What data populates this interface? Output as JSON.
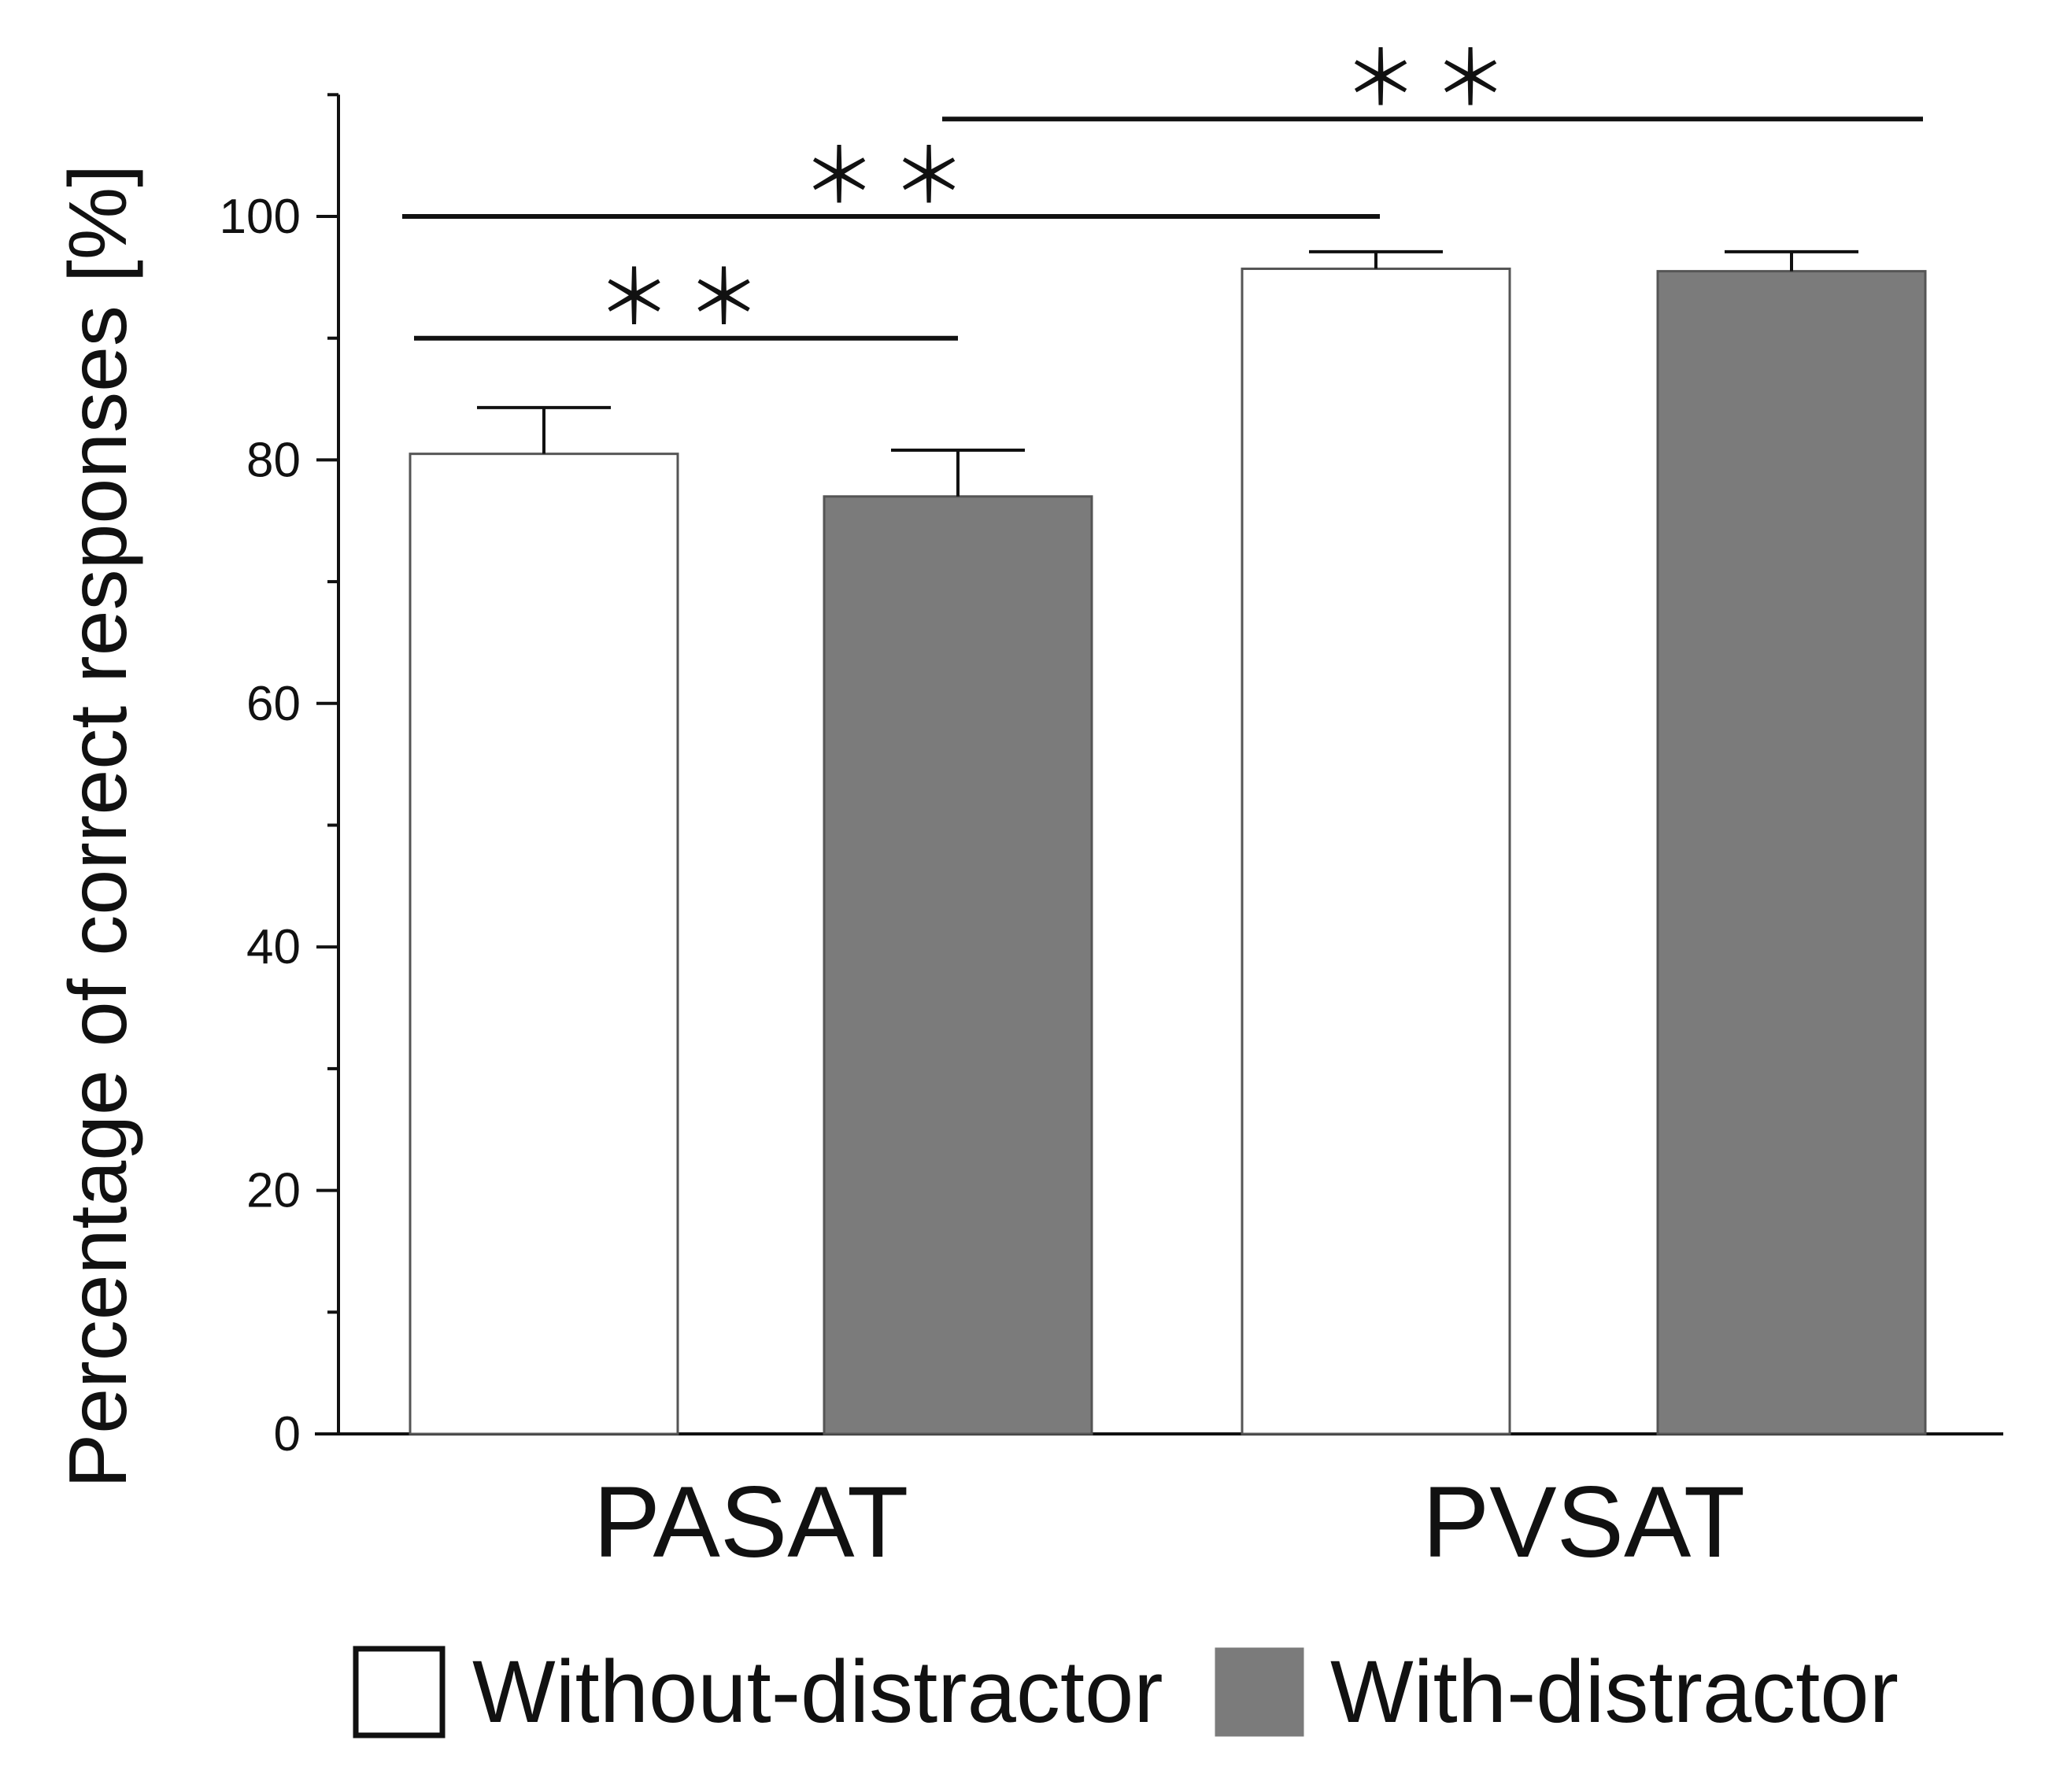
{
  "chart_data": {
    "type": "bar",
    "title": "",
    "xlabel": "",
    "ylabel": "Percentage of correct responses [%]",
    "ylim": [
      0,
      110
    ],
    "yticks": [
      0,
      20,
      40,
      60,
      80,
      100
    ],
    "minor_tick_step": 10,
    "categories": [
      "PASAT",
      "PVSAT"
    ],
    "series": [
      {
        "name": "Without-distractor",
        "color": "#ffffff",
        "values": [
          80.5,
          95.7
        ],
        "errors": [
          3.8,
          1.4
        ]
      },
      {
        "name": "With-distractor",
        "color": "#7b7b7b",
        "values": [
          77.0,
          95.5
        ],
        "errors": [
          3.8,
          1.6
        ]
      }
    ],
    "legend_position": "bottom",
    "significance": [
      {
        "label": "＊＊",
        "from": [
          "PASAT",
          "Without-distractor"
        ],
        "to": [
          "PASAT",
          "With-distractor"
        ],
        "level": 90
      },
      {
        "label": "＊＊",
        "from": [
          "PASAT",
          "Without-distractor"
        ],
        "to": [
          "PVSAT",
          "Without-distractor"
        ],
        "level": 100
      },
      {
        "label": "＊＊",
        "from": [
          "PASAT",
          "With-distractor"
        ],
        "to": [
          "PVSAT",
          "With-distractor"
        ],
        "level": 108
      }
    ]
  }
}
